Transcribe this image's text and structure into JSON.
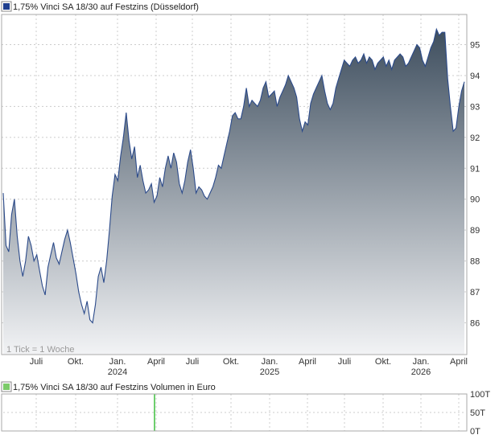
{
  "colors": {
    "price_line": "#2b4a8a",
    "price_fill_top": "#3e4e5e",
    "price_fill_bottom": "#f2f3f5",
    "price_legend_swatch": "#1f3f8f",
    "volume_legend_swatch": "#7ccb6a",
    "volume_bar": "#3fbf3f",
    "grid": "#cccccc"
  },
  "chart_data": [
    {
      "type": "area",
      "title": "1,75% Vinci SA 18/30 auf Festzins (Düsseldorf)",
      "note": "1 Tick = 1 Woche",
      "ylim": [
        85,
        96
      ],
      "y_ticks": [
        86,
        87,
        88,
        89,
        90,
        91,
        92,
        93,
        94,
        95
      ],
      "x_tick_labels": [
        "Juli",
        "Okt.",
        "Jan.",
        "April",
        "Juli",
        "Okt.",
        "Jan.",
        "April",
        "Juli",
        "Okt.",
        "Jan.",
        "April"
      ],
      "x_year_labels": [
        "2024",
        "2025",
        "2026"
      ],
      "grid": true,
      "series": [
        {
          "values": [
            90.2,
            88.5,
            88.3,
            89.5,
            90.0,
            88.8,
            88.0,
            87.5,
            88.0,
            88.8,
            88.5,
            88.0,
            88.2,
            87.7,
            87.2,
            86.9,
            87.8,
            88.2,
            88.6,
            88.1,
            87.9,
            88.3,
            88.7,
            89.0,
            88.6,
            88.1,
            87.6,
            87.0,
            86.6,
            86.3,
            86.7,
            86.1,
            86.0,
            86.6,
            87.5,
            87.8,
            87.3,
            88.0,
            89.0,
            90.1,
            90.8,
            90.6,
            91.4,
            92.0,
            92.8,
            91.9,
            91.3,
            91.7,
            90.7,
            91.1,
            90.6,
            90.2,
            90.3,
            90.5,
            89.9,
            90.1,
            90.7,
            90.4,
            91.0,
            91.4,
            91.0,
            91.5,
            91.2,
            90.5,
            90.2,
            90.6,
            91.2,
            91.6,
            91.0,
            90.2,
            90.4,
            90.3,
            90.1,
            90.0,
            90.2,
            90.4,
            90.7,
            91.1,
            91.0,
            91.4,
            91.8,
            92.2,
            92.7,
            92.8,
            92.6,
            92.6,
            93.0,
            93.6,
            93.0,
            93.2,
            93.1,
            93.0,
            93.2,
            93.6,
            93.8,
            93.3,
            93.4,
            93.5,
            93.0,
            93.3,
            93.5,
            93.7,
            94.0,
            93.8,
            93.6,
            93.3,
            92.6,
            92.2,
            92.5,
            92.4,
            93.1,
            93.4,
            93.6,
            93.8,
            94.0,
            93.5,
            93.1,
            92.9,
            93.1,
            93.6,
            93.9,
            94.2,
            94.5,
            94.4,
            94.3,
            94.5,
            94.6,
            94.4,
            94.5,
            94.7,
            94.4,
            94.6,
            94.5,
            94.2,
            94.4,
            94.5,
            94.6,
            94.3,
            94.5,
            94.2,
            94.5,
            94.6,
            94.7,
            94.6,
            94.3,
            94.4,
            94.6,
            94.8,
            95.0,
            94.9,
            94.5,
            94.3,
            94.6,
            94.9,
            95.1,
            95.5,
            95.3,
            95.4,
            95.4,
            93.9,
            93.0,
            92.2,
            92.3,
            93.0,
            93.5,
            93.8
          ]
        }
      ]
    },
    {
      "type": "bar",
      "title": "1,75% Vinci SA 18/30 auf Festzins Volumen in Euro",
      "y_tick_labels": [
        "100T",
        "50T",
        "0T"
      ],
      "ylim": [
        0,
        100
      ],
      "grid": true,
      "series": [
        {
          "values": [
            {
              "t": "2024-04",
              "value": 100
            }
          ]
        }
      ]
    }
  ]
}
